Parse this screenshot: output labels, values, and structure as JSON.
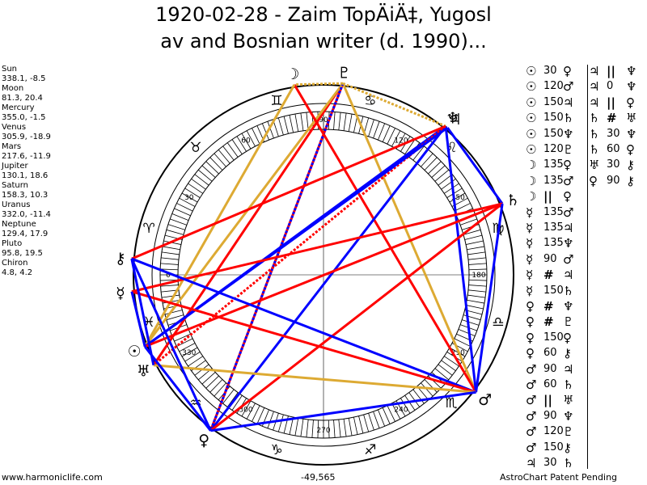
{
  "title_line1": "1920-02-28  -  Zaim TopÄiÄ‡, Yugosl",
  "title_line2": "av and Bosnian writer (d. 1990)...",
  "planets": [
    {
      "name": "Sun",
      "pos": "338.1, -8.5"
    },
    {
      "name": "Moon",
      "pos": "81.3, 20.4"
    },
    {
      "name": "Mercury",
      "pos": "355.0, -1.5"
    },
    {
      "name": "Venus",
      "pos": "305.9, -18.9"
    },
    {
      "name": "Mars",
      "pos": "217.6, -11.9"
    },
    {
      "name": "Jupiter",
      "pos": "130.1, 18.6"
    },
    {
      "name": "Saturn",
      "pos": "158.3, 10.3"
    },
    {
      "name": "Uranus",
      "pos": "332.0, -11.4"
    },
    {
      "name": "Neptune",
      "pos": "129.4, 17.9"
    },
    {
      "name": "Pluto",
      "pos": "95.8, 19.5"
    },
    {
      "name": "Chiron",
      "pos": "4.8, 4.2"
    }
  ],
  "wheel_degree_labels": [
    "0",
    "30",
    "60",
    "90",
    "120",
    "150",
    "180",
    "210",
    "240",
    "270",
    "300",
    "330"
  ],
  "zodiac_signs": [
    "♈",
    "♉",
    "♊",
    "♋",
    "♌",
    "♍",
    "♎",
    "♏",
    "♐",
    "♑",
    "♒",
    "♓"
  ],
  "wheel_planets": [
    {
      "glyph": "☉",
      "lon": 338.1
    },
    {
      "glyph": "☽",
      "lon": 81.3
    },
    {
      "glyph": "☿",
      "lon": 355.0
    },
    {
      "glyph": "♀",
      "lon": 305.9
    },
    {
      "glyph": "♂",
      "lon": 217.6
    },
    {
      "glyph": "♃",
      "lon": 130.1
    },
    {
      "glyph": "♄",
      "lon": 158.3
    },
    {
      "glyph": "♅",
      "lon": 332.0
    },
    {
      "glyph": "♆",
      "lon": 129.4
    },
    {
      "glyph": "♇",
      "lon": 95.8
    },
    {
      "glyph": "⚷",
      "lon": 4.8
    }
  ],
  "aspect_lines": [
    {
      "a": 95.8,
      "b": 305.9,
      "color": "#ff0000",
      "dash": false
    },
    {
      "a": 95.8,
      "b": 332.0,
      "color": "#ff0000",
      "dash": false
    },
    {
      "a": 95.8,
      "b": 338.1,
      "color": "#ddaa33",
      "dash": false
    },
    {
      "a": 95.8,
      "b": 217.6,
      "color": "#ddaa33",
      "dash": false
    },
    {
      "a": 95.8,
      "b": 305.9,
      "color": "#0000ff",
      "dash": true
    },
    {
      "a": 95.8,
      "b": 129.4,
      "color": "#ddaa33",
      "dash": true
    },
    {
      "a": 95.8,
      "b": 81.3,
      "color": "#ddaa33",
      "dash": true
    },
    {
      "a": 81.3,
      "b": 217.6,
      "color": "#ff0000",
      "dash": false
    },
    {
      "a": 81.3,
      "b": 338.1,
      "color": "#ddaa33",
      "dash": false
    },
    {
      "a": 129.4,
      "b": 338.1,
      "color": "#0000ff",
      "dash": false
    },
    {
      "a": 129.4,
      "b": 305.9,
      "color": "#0000ff",
      "dash": false
    },
    {
      "a": 129.4,
      "b": 217.6,
      "color": "#0000ff",
      "dash": false
    },
    {
      "a": 129.4,
      "b": 4.8,
      "color": "#ff0000",
      "dash": false
    },
    {
      "a": 129.4,
      "b": 332.0,
      "color": "#ff0000",
      "dash": true
    },
    {
      "a": 130.1,
      "b": 338.1,
      "color": "#0000ff",
      "dash": false
    },
    {
      "a": 130.1,
      "b": 158.3,
      "color": "#0000ff",
      "dash": false
    },
    {
      "a": 158.3,
      "b": 338.1,
      "color": "#ff0000",
      "dash": false
    },
    {
      "a": 158.3,
      "b": 355.0,
      "color": "#ff0000",
      "dash": false
    },
    {
      "a": 158.3,
      "b": 305.9,
      "color": "#ff0000",
      "dash": false
    },
    {
      "a": 158.3,
      "b": 217.6,
      "color": "#0000ff",
      "dash": false
    },
    {
      "a": 217.6,
      "b": 4.8,
      "color": "#0000ff",
      "dash": false
    },
    {
      "a": 217.6,
      "b": 355.0,
      "color": "#ff0000",
      "dash": false
    },
    {
      "a": 217.6,
      "b": 332.0,
      "color": "#ddaa33",
      "dash": false
    },
    {
      "a": 217.6,
      "b": 305.9,
      "color": "#0000ff",
      "dash": false
    },
    {
      "a": 305.9,
      "b": 4.8,
      "color": "#0000ff",
      "dash": false
    },
    {
      "a": 305.9,
      "b": 338.1,
      "color": "#0000ff",
      "dash": false
    },
    {
      "a": 338.1,
      "b": 355.0,
      "color": "#0000ff",
      "dash": false
    },
    {
      "a": 332.0,
      "b": 4.8,
      "color": "#0000ff",
      "dash": false
    }
  ],
  "aspects_col1": [
    {
      "p1": "☉",
      "ang": "30",
      "p2": "♀"
    },
    {
      "p1": "☉",
      "ang": "120",
      "p2": "♂"
    },
    {
      "p1": "☉",
      "ang": "150",
      "p2": "♃"
    },
    {
      "p1": "☉",
      "ang": "150",
      "p2": "♄"
    },
    {
      "p1": "☉",
      "ang": "150",
      "p2": "♆"
    },
    {
      "p1": "☉",
      "ang": "120",
      "p2": "♇"
    },
    {
      "p1": "☽",
      "ang": "135",
      "p2": "♀"
    },
    {
      "p1": "☽",
      "ang": "135",
      "p2": "♂"
    },
    {
      "p1": "☽",
      "ang": "||",
      "p2": "♀"
    },
    {
      "p1": "☿",
      "ang": "135",
      "p2": "♂"
    },
    {
      "p1": "☿",
      "ang": "135",
      "p2": "♃"
    },
    {
      "p1": "☿",
      "ang": "135",
      "p2": "♆"
    },
    {
      "p1": "☿",
      "ang": "90",
      "p2": "♂"
    },
    {
      "p1": "☿",
      "ang": "#",
      "p2": "♃"
    },
    {
      "p1": "☿",
      "ang": "150",
      "p2": "♄"
    },
    {
      "p1": "♀",
      "ang": "#",
      "p2": "♆"
    },
    {
      "p1": "♀",
      "ang": "#",
      "p2": "♇"
    },
    {
      "p1": "♀",
      "ang": "150",
      "p2": "♀"
    },
    {
      "p1": "♀",
      "ang": "60",
      "p2": "⚷"
    },
    {
      "p1": "♂",
      "ang": "90",
      "p2": "♃"
    },
    {
      "p1": "♂",
      "ang": "60",
      "p2": "♄"
    },
    {
      "p1": "♂",
      "ang": "||",
      "p2": "♅"
    },
    {
      "p1": "♂",
      "ang": "90",
      "p2": "♆"
    },
    {
      "p1": "♂",
      "ang": "120",
      "p2": "♇"
    },
    {
      "p1": "♂",
      "ang": "150",
      "p2": "⚷"
    },
    {
      "p1": "♃",
      "ang": "30",
      "p2": "♄"
    }
  ],
  "aspects_col2": [
    {
      "p1": "♃",
      "ang": "||",
      "p2": "♆"
    },
    {
      "p1": "♃",
      "ang": "0",
      "p2": "♆"
    },
    {
      "p1": "♃",
      "ang": "||",
      "p2": "♀"
    },
    {
      "p1": "♄",
      "ang": "#",
      "p2": "♅"
    },
    {
      "p1": "♄",
      "ang": "30",
      "p2": "♆"
    },
    {
      "p1": "♄",
      "ang": "60",
      "p2": "♀"
    },
    {
      "p1": "♅",
      "ang": "30",
      "p2": "⚷"
    },
    {
      "p1": "♀",
      "ang": "90",
      "p2": "⚷"
    }
  ],
  "footer_left": "www.harmoniclife.com",
  "footer_center": "-49,565",
  "footer_right": "AstroChart Patent Pending"
}
